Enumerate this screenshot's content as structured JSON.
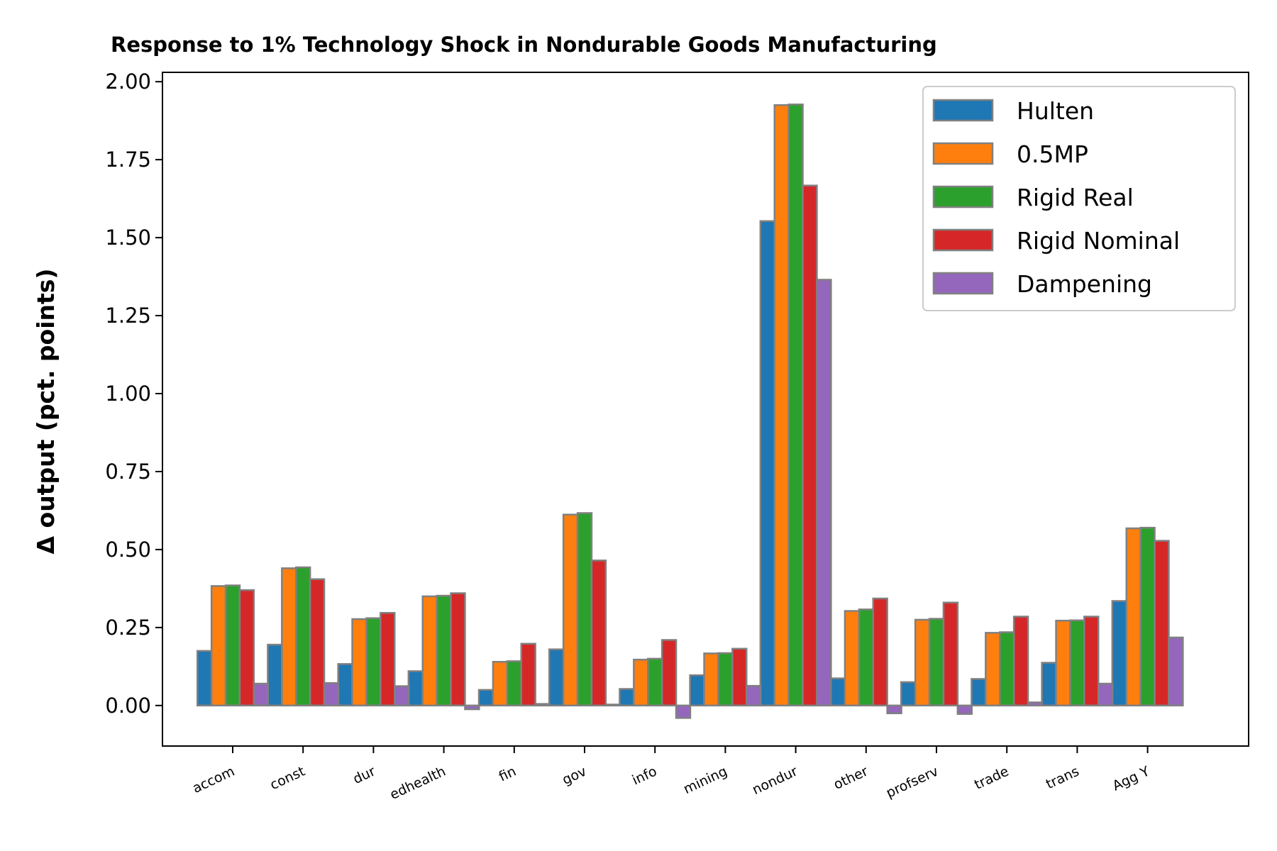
{
  "chart_data": {
    "type": "bar",
    "title": "Response to 1% Technology Shock in Nondurable Goods Manufacturing",
    "xlabel": "",
    "ylabel": "Δ output (pct. points)",
    "ylim": [
      -0.13,
      2.03
    ],
    "yticks": [
      "0.00",
      "0.25",
      "0.50",
      "0.75",
      "1.00",
      "1.25",
      "1.50",
      "1.75",
      "2.00"
    ],
    "ytick_values": [
      0,
      0.25,
      0.5,
      0.75,
      1.0,
      1.25,
      1.5,
      1.75,
      2.0
    ],
    "grid": false,
    "legend_position": "top-right",
    "categories": [
      "accom",
      "const",
      "dur",
      "edhealth",
      "fin",
      "gov",
      "info",
      "mining",
      "nondur",
      "other",
      "profserv",
      "trade",
      "trans",
      "Agg Y"
    ],
    "series": [
      {
        "name": "Hulten",
        "color": "#1f77b4",
        "values": [
          0.175,
          0.195,
          0.133,
          0.11,
          0.05,
          0.18,
          0.053,
          0.097,
          1.553,
          0.087,
          0.075,
          0.085,
          0.137,
          0.335
        ]
      },
      {
        "name": "0.5MP",
        "color": "#ff7f0e",
        "values": [
          0.383,
          0.44,
          0.277,
          0.35,
          0.14,
          0.612,
          0.147,
          0.167,
          1.925,
          0.303,
          0.275,
          0.233,
          0.272,
          0.568
        ]
      },
      {
        "name": "Rigid Real",
        "color": "#2ca02c",
        "values": [
          0.385,
          0.443,
          0.28,
          0.352,
          0.142,
          0.617,
          0.15,
          0.168,
          1.927,
          0.308,
          0.278,
          0.235,
          0.273,
          0.57
        ]
      },
      {
        "name": "Rigid Nominal",
        "color": "#d62728",
        "values": [
          0.37,
          0.405,
          0.297,
          0.36,
          0.198,
          0.465,
          0.21,
          0.182,
          1.667,
          0.343,
          0.33,
          0.285,
          0.285,
          0.528
        ]
      },
      {
        "name": "Dampening",
        "color": "#9467bd",
        "values": [
          0.07,
          0.072,
          0.062,
          -0.012,
          0.005,
          0.003,
          -0.04,
          0.063,
          1.365,
          -0.025,
          -0.027,
          0.01,
          0.07,
          0.218
        ]
      }
    ],
    "bar_edgecolor": "#808080"
  }
}
